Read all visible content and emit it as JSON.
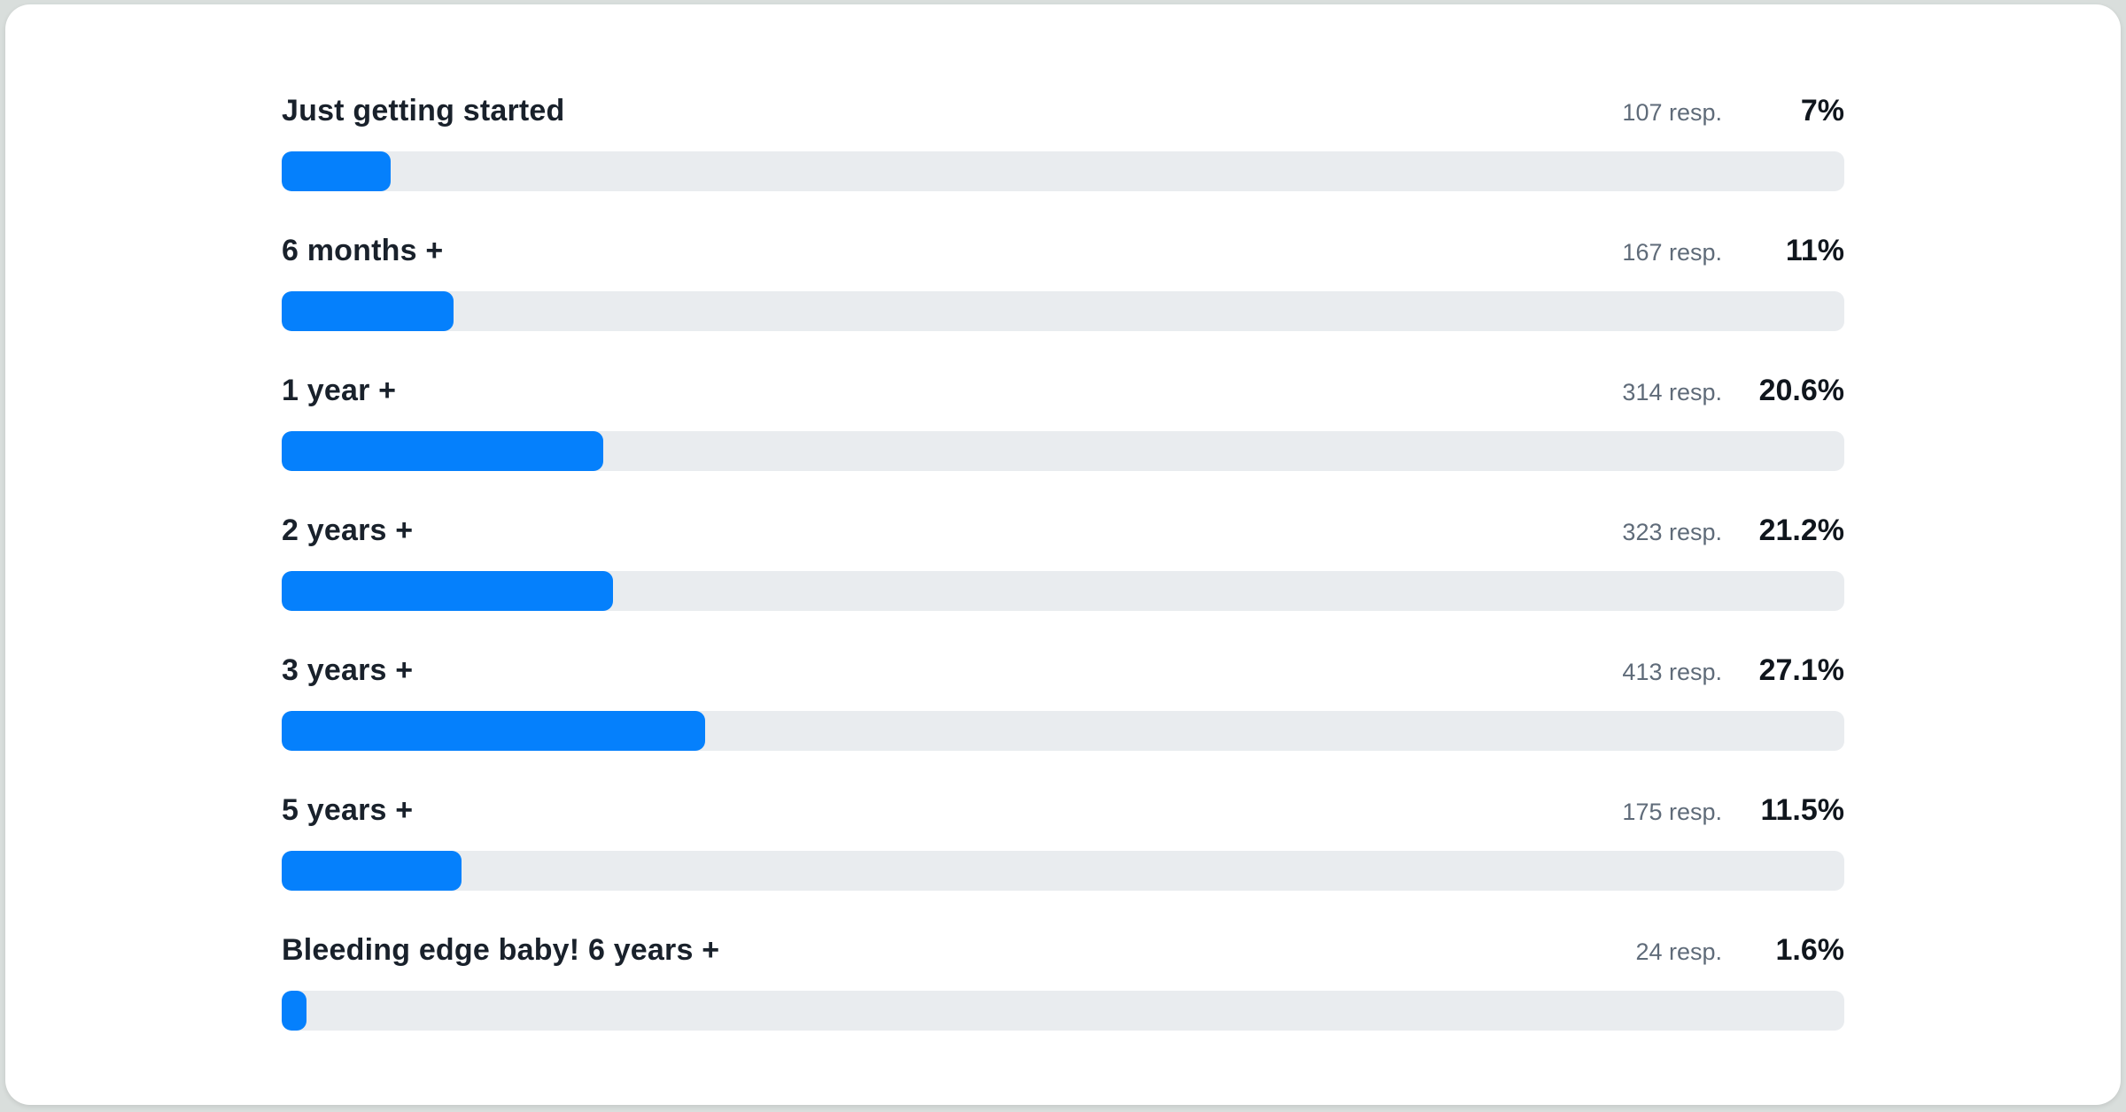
{
  "page": {
    "background_color": "#d9dedc"
  },
  "card": {
    "background_color": "#ffffff"
  },
  "colors": {
    "bar_fill": "#0580fc",
    "bar_track": "#e9ecef",
    "label_text": "#19212b",
    "count_text": "#5f6b79",
    "percent_text": "#10161d"
  },
  "chart_data": {
    "type": "bar",
    "orientation": "horizontal",
    "title": "",
    "xlabel": "",
    "ylabel": "",
    "xlim": [
      0,
      100
    ],
    "grid": false,
    "legend": "none",
    "categories": [
      "Just getting started",
      "6 months +",
      "1 year +",
      "2 years +",
      "3 years +",
      "5 years +",
      "Bleeding edge baby! 6 years +"
    ],
    "series": [
      {
        "name": "responses",
        "values": [
          107,
          167,
          314,
          323,
          413,
          175,
          24
        ]
      },
      {
        "name": "percent",
        "values": [
          7,
          11,
          20.6,
          21.2,
          27.1,
          11.5,
          1.6
        ]
      }
    ]
  },
  "chart": {
    "rows": [
      {
        "label": "Just getting started",
        "responses": "107 resp.",
        "percent": "7%",
        "percent_value": 7
      },
      {
        "label": "6 months +",
        "responses": "167 resp.",
        "percent": "11%",
        "percent_value": 11
      },
      {
        "label": "1 year +",
        "responses": "314 resp.",
        "percent": "20.6%",
        "percent_value": 20.6
      },
      {
        "label": "2 years +",
        "responses": "323 resp.",
        "percent": "21.2%",
        "percent_value": 21.2
      },
      {
        "label": "3 years +",
        "responses": "413 resp.",
        "percent": "27.1%",
        "percent_value": 27.1
      },
      {
        "label": "5 years +",
        "responses": "175 resp.",
        "percent": "11.5%",
        "percent_value": 11.5
      },
      {
        "label": "Bleeding edge baby! 6 years +",
        "responses": "24 resp.",
        "percent": "1.6%",
        "percent_value": 1.6
      }
    ]
  }
}
